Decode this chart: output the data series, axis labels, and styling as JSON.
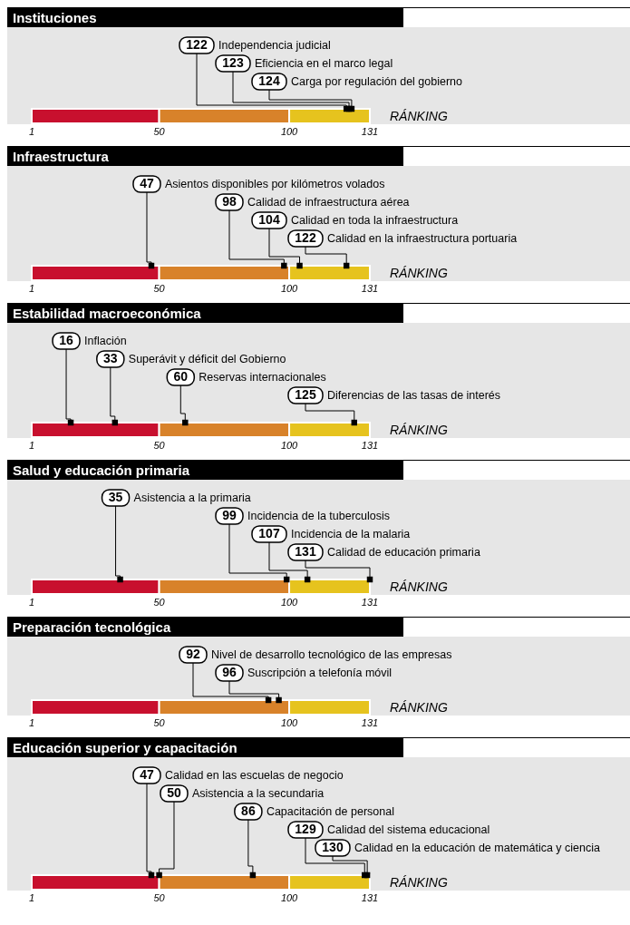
{
  "chart_data": [
    {
      "type": "other",
      "title": "Instituciones",
      "xlabel": "RÁNKING",
      "data_labels": true,
      "color": "#000000",
      "annotations": [
        "1",
        "50",
        "100",
        "131"
      ],
      "categories": [
        "Independencia judicial",
        "Eficiencia en el marco legal",
        "Carga por regulación del gobierno"
      ],
      "values": [
        122,
        123,
        124
      ]
    },
    {
      "type": "other",
      "title": "Infraestructura",
      "xlabel": "RÁNKING",
      "data_labels": true,
      "color": "#000000",
      "annotations": [
        "1",
        "50",
        "100",
        "131"
      ],
      "categories": [
        "Asientos disponibles por kilómetros volados",
        "Calidad de infraestructura aérea",
        "Calidad en toda la infraestructura",
        "Calidad en la infraestructura portuaria"
      ],
      "values": [
        47,
        98,
        104,
        122
      ]
    },
    {
      "type": "other",
      "title": "Estabilidad macroeconómica",
      "xlabel": "RÁNKING",
      "data_labels": true,
      "color": "#000000",
      "annotations": [
        "1",
        "50",
        "100",
        "131"
      ],
      "categories": [
        "Inflación",
        "Superávit y déficit del Gobierno",
        "Reservas internacionales",
        "Diferencias de las tasas de interés"
      ],
      "values": [
        16,
        33,
        60,
        125
      ]
    },
    {
      "type": "other",
      "title": "Salud y educación primaria",
      "xlabel": "RÁNKING",
      "data_labels": true,
      "color": "#000000",
      "annotations": [
        "1",
        "50",
        "100",
        "131"
      ],
      "categories": [
        "Asistencia a la primaria",
        "Incidencia de la tuberculosis",
        "Incidencia de la malaria",
        "Calidad de educación primaria"
      ],
      "values": [
        35,
        99,
        107,
        131
      ]
    },
    {
      "type": "other",
      "title": "Preparación tecnológica",
      "xlabel": "RÁNKING",
      "data_labels": true,
      "color": "#000000",
      "annotations": [
        "1",
        "50",
        "100",
        "131"
      ],
      "categories": [
        "Nivel de desarrollo tecnológico de las empresas",
        "Suscripción a telefonía móvil"
      ],
      "values": [
        92,
        96
      ]
    },
    {
      "type": "other",
      "title": "Educación superior y capacitación",
      "xlabel": "RÁNKING",
      "data_labels": true,
      "color": "#000000",
      "annotations": [
        "1",
        "50",
        "100",
        "131"
      ],
      "categories": [
        "Calidad en las escuelas de negocio",
        "Asistencia a la secundaria",
        "Capacitación de personal",
        "Calidad del sistema educacional",
        "Calidad en la educación de matemática y ciencia"
      ],
      "values": [
        47,
        50,
        86,
        129,
        130
      ]
    }
  ]
}
